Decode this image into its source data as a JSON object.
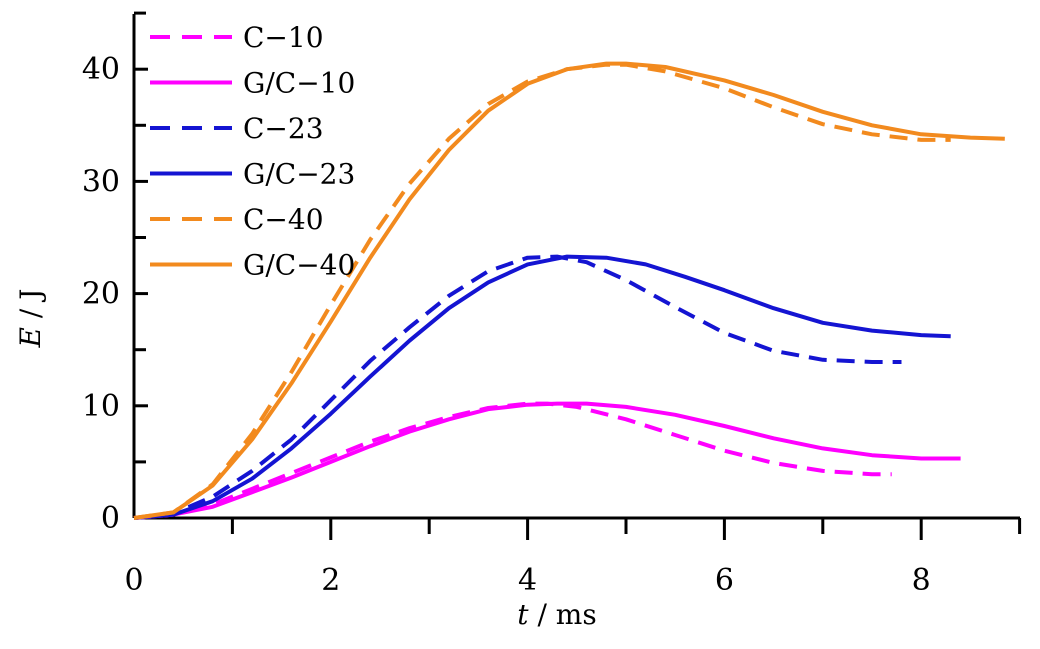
{
  "chart_data": {
    "type": "line",
    "xlabel": {
      "var": "t",
      "unit": " / ms"
    },
    "ylabel": {
      "var": "E",
      "unit": " / J"
    },
    "xlim": [
      0,
      9
    ],
    "ylim": [
      0,
      45
    ],
    "xticks": [
      0,
      2,
      4,
      6,
      8
    ],
    "yticks": [
      0,
      10,
      20,
      30,
      40
    ],
    "legend_position": "top-left",
    "series": [
      {
        "name": "C−10",
        "color": "#ff00ff",
        "dash": true,
        "x": [
          0,
          0.4,
          0.8,
          1.2,
          1.6,
          2.0,
          2.4,
          2.8,
          3.2,
          3.6,
          4.0,
          4.2,
          4.5,
          5.0,
          5.5,
          6.0,
          6.5,
          7.0,
          7.5,
          7.7
        ],
        "y": [
          0,
          0.3,
          1.2,
          2.6,
          4.0,
          5.4,
          6.8,
          8.0,
          9.0,
          9.8,
          10.2,
          10.2,
          9.9,
          8.8,
          7.4,
          6.0,
          4.9,
          4.2,
          3.9,
          3.9
        ]
      },
      {
        "name": "G/C−10",
        "color": "#ff00ff",
        "dash": false,
        "x": [
          0,
          0.4,
          0.8,
          1.2,
          1.6,
          2.0,
          2.4,
          2.8,
          3.2,
          3.6,
          4.0,
          4.3,
          4.6,
          5.0,
          5.5,
          6.0,
          6.5,
          7.0,
          7.5,
          8.0,
          8.4
        ],
        "y": [
          0,
          0.3,
          1.0,
          2.3,
          3.6,
          5.0,
          6.4,
          7.7,
          8.8,
          9.7,
          10.1,
          10.2,
          10.2,
          9.9,
          9.2,
          8.2,
          7.1,
          6.2,
          5.6,
          5.3,
          5.3
        ]
      },
      {
        "name": "C−23",
        "color": "#1414d2",
        "dash": true,
        "x": [
          0,
          0.4,
          0.8,
          1.2,
          1.6,
          2.0,
          2.4,
          2.8,
          3.2,
          3.6,
          4.0,
          4.3,
          4.6,
          5.0,
          5.5,
          6.0,
          6.5,
          7.0,
          7.5,
          7.8
        ],
        "y": [
          0,
          0.4,
          1.9,
          4.2,
          7.0,
          10.5,
          14.0,
          17.0,
          19.8,
          22.0,
          23.2,
          23.3,
          22.8,
          21.2,
          18.8,
          16.5,
          14.9,
          14.1,
          13.9,
          13.9
        ]
      },
      {
        "name": "G/C−23",
        "color": "#1414d2",
        "dash": false,
        "x": [
          0,
          0.4,
          0.8,
          1.2,
          1.6,
          2.0,
          2.4,
          2.8,
          3.2,
          3.6,
          4.0,
          4.4,
          4.8,
          5.2,
          5.6,
          6.0,
          6.5,
          7.0,
          7.5,
          8.0,
          8.3
        ],
        "y": [
          0,
          0.3,
          1.5,
          3.5,
          6.2,
          9.3,
          12.6,
          15.8,
          18.7,
          21.0,
          22.6,
          23.3,
          23.2,
          22.6,
          21.5,
          20.3,
          18.7,
          17.4,
          16.7,
          16.3,
          16.2
        ]
      },
      {
        "name": "C−40",
        "color": "#f28a1e",
        "dash": true,
        "x": [
          0,
          0.4,
          0.8,
          1.2,
          1.6,
          2.0,
          2.4,
          2.8,
          3.2,
          3.6,
          4.0,
          4.4,
          4.8,
          5.0,
          5.4,
          6.0,
          6.5,
          7.0,
          7.5,
          8.0,
          8.3
        ],
        "y": [
          0,
          0.5,
          3.0,
          7.5,
          13.0,
          19.0,
          24.8,
          29.8,
          33.8,
          36.9,
          38.9,
          40.0,
          40.4,
          40.4,
          39.8,
          38.3,
          36.6,
          35.1,
          34.2,
          33.7,
          33.7
        ]
      },
      {
        "name": "G/C−40",
        "color": "#f28a1e",
        "dash": false,
        "x": [
          0,
          0.4,
          0.8,
          1.2,
          1.6,
          2.0,
          2.4,
          2.8,
          3.2,
          3.6,
          4.0,
          4.4,
          4.8,
          5.0,
          5.4,
          6.0,
          6.5,
          7.0,
          7.5,
          8.0,
          8.5,
          8.85
        ],
        "y": [
          0,
          0.5,
          2.9,
          7.0,
          12.0,
          17.5,
          23.2,
          28.4,
          32.8,
          36.3,
          38.7,
          40.0,
          40.5,
          40.5,
          40.2,
          39.0,
          37.7,
          36.2,
          35.0,
          34.2,
          33.9,
          33.8
        ]
      }
    ]
  }
}
